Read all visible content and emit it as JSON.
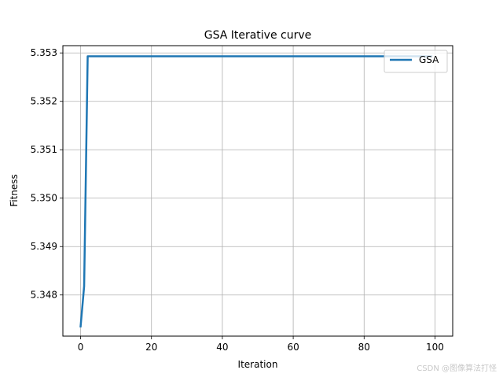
{
  "chart_data": {
    "type": "line",
    "title": "GSA Iterative curve",
    "xlabel": "Iteration",
    "ylabel": "Fitness",
    "xlim": [
      -5,
      105
    ],
    "ylim": [
      5.34715,
      5.35315
    ],
    "xticks": [
      0,
      20,
      40,
      60,
      80,
      100
    ],
    "xtick_labels": [
      "0",
      "20",
      "40",
      "60",
      "80",
      "100"
    ],
    "yticks": [
      5.348,
      5.349,
      5.35,
      5.351,
      5.352,
      5.353
    ],
    "ytick_labels": [
      "5.348",
      "5.349",
      "5.350",
      "5.351",
      "5.352",
      "5.353"
    ],
    "grid": true,
    "legend_position": "top-right",
    "series": [
      {
        "name": "GSA",
        "color": "#1f77b4",
        "x": [
          0,
          1,
          2,
          99
        ],
        "y": [
          5.34735,
          5.34818,
          5.35293,
          5.35293
        ]
      }
    ]
  },
  "watermark": "CSDN @图像算法打怪"
}
